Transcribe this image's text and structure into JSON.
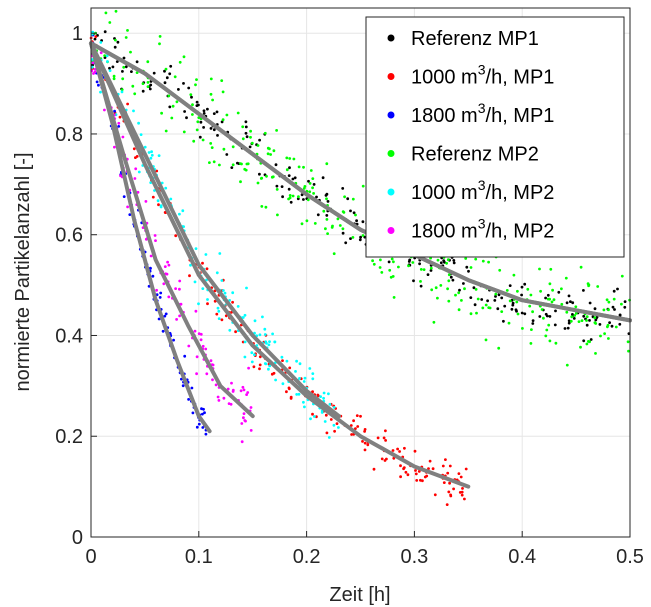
{
  "chart_data": {
    "type": "scatter",
    "title": "",
    "xlabel": "Zeit [h]",
    "ylabel": "normierte Partikelanzahl [-]",
    "xlim": [
      0,
      0.5
    ],
    "ylim": [
      0,
      1.05
    ],
    "x_ticks": [
      "0",
      "0.1",
      "0.2",
      "0.3",
      "0.4",
      "0.5"
    ],
    "y_ticks": [
      "0",
      "0.2",
      "0.4",
      "0.6",
      "0.8",
      "1"
    ],
    "grid": true,
    "legend_position": "top-right",
    "fit_color": "#808080",
    "series": [
      {
        "name": "Referenz MP1",
        "label_base": "Referenz MP1",
        "label_sup": "",
        "label_rest": "",
        "color": "#000000",
        "x_range": [
          0,
          0.5
        ],
        "noise": 0.025,
        "count": 260,
        "points": [
          [
            0.0,
            0.98
          ],
          [
            0.05,
            0.92
          ],
          [
            0.1,
            0.84
          ],
          [
            0.15,
            0.76
          ],
          [
            0.2,
            0.68
          ],
          [
            0.25,
            0.61
          ],
          [
            0.3,
            0.56
          ],
          [
            0.35,
            0.51
          ],
          [
            0.4,
            0.47
          ],
          [
            0.45,
            0.45
          ],
          [
            0.5,
            0.43
          ]
        ]
      },
      {
        "name": "1000 m3/h, MP1",
        "label_base": "1000 m",
        "label_sup": "3",
        "label_rest": "/h, MP1",
        "color": "#ff0000",
        "x_range": [
          0,
          0.35
        ],
        "noise": 0.02,
        "count": 220,
        "points": [
          [
            0.0,
            0.98
          ],
          [
            0.05,
            0.74
          ],
          [
            0.1,
            0.52
          ],
          [
            0.15,
            0.38
          ],
          [
            0.2,
            0.28
          ],
          [
            0.25,
            0.2
          ],
          [
            0.3,
            0.14
          ],
          [
            0.35,
            0.1
          ]
        ]
      },
      {
        "name": "1800 m3/h, MP1",
        "label_base": "1800 m",
        "label_sup": "3",
        "label_rest": "/h, MP1",
        "color": "#0000ff",
        "x_range": [
          0,
          0.11
        ],
        "noise": 0.02,
        "count": 110,
        "points": [
          [
            0.0,
            0.98
          ],
          [
            0.02,
            0.82
          ],
          [
            0.04,
            0.63
          ],
          [
            0.06,
            0.47
          ],
          [
            0.08,
            0.35
          ],
          [
            0.1,
            0.24
          ],
          [
            0.11,
            0.21
          ]
        ]
      },
      {
        "name": "Referenz MP2",
        "label_base": "Referenz MP2",
        "label_sup": "",
        "label_rest": "",
        "color": "#00ff00",
        "x_range": [
          0,
          0.5
        ],
        "noise": 0.045,
        "count": 320,
        "points": [
          [
            0.0,
            0.98
          ],
          [
            0.05,
            0.92
          ],
          [
            0.1,
            0.84
          ],
          [
            0.15,
            0.76
          ],
          [
            0.2,
            0.68
          ],
          [
            0.25,
            0.61
          ],
          [
            0.3,
            0.56
          ],
          [
            0.35,
            0.51
          ],
          [
            0.4,
            0.47
          ],
          [
            0.45,
            0.45
          ],
          [
            0.5,
            0.43
          ]
        ]
      },
      {
        "name": "1000 m3/h, MP2",
        "label_base": "1000 m",
        "label_sup": "3",
        "label_rest": "/h, MP2",
        "color": "#00ffff",
        "x_range": [
          0,
          0.23
        ],
        "noise": 0.03,
        "count": 200,
        "points": [
          [
            0.0,
            0.98
          ],
          [
            0.05,
            0.76
          ],
          [
            0.1,
            0.54
          ],
          [
            0.15,
            0.4
          ],
          [
            0.2,
            0.29
          ],
          [
            0.23,
            0.24
          ]
        ]
      },
      {
        "name": "1800 m3/h, MP2",
        "label_base": "1800 m",
        "label_sup": "3",
        "label_rest": "/h, MP2",
        "color": "#ff00ff",
        "x_range": [
          0,
          0.15
        ],
        "noise": 0.03,
        "count": 130,
        "points": [
          [
            0.0,
            0.98
          ],
          [
            0.03,
            0.76
          ],
          [
            0.06,
            0.55
          ],
          [
            0.09,
            0.42
          ],
          [
            0.12,
            0.3
          ],
          [
            0.15,
            0.24
          ]
        ]
      }
    ]
  }
}
